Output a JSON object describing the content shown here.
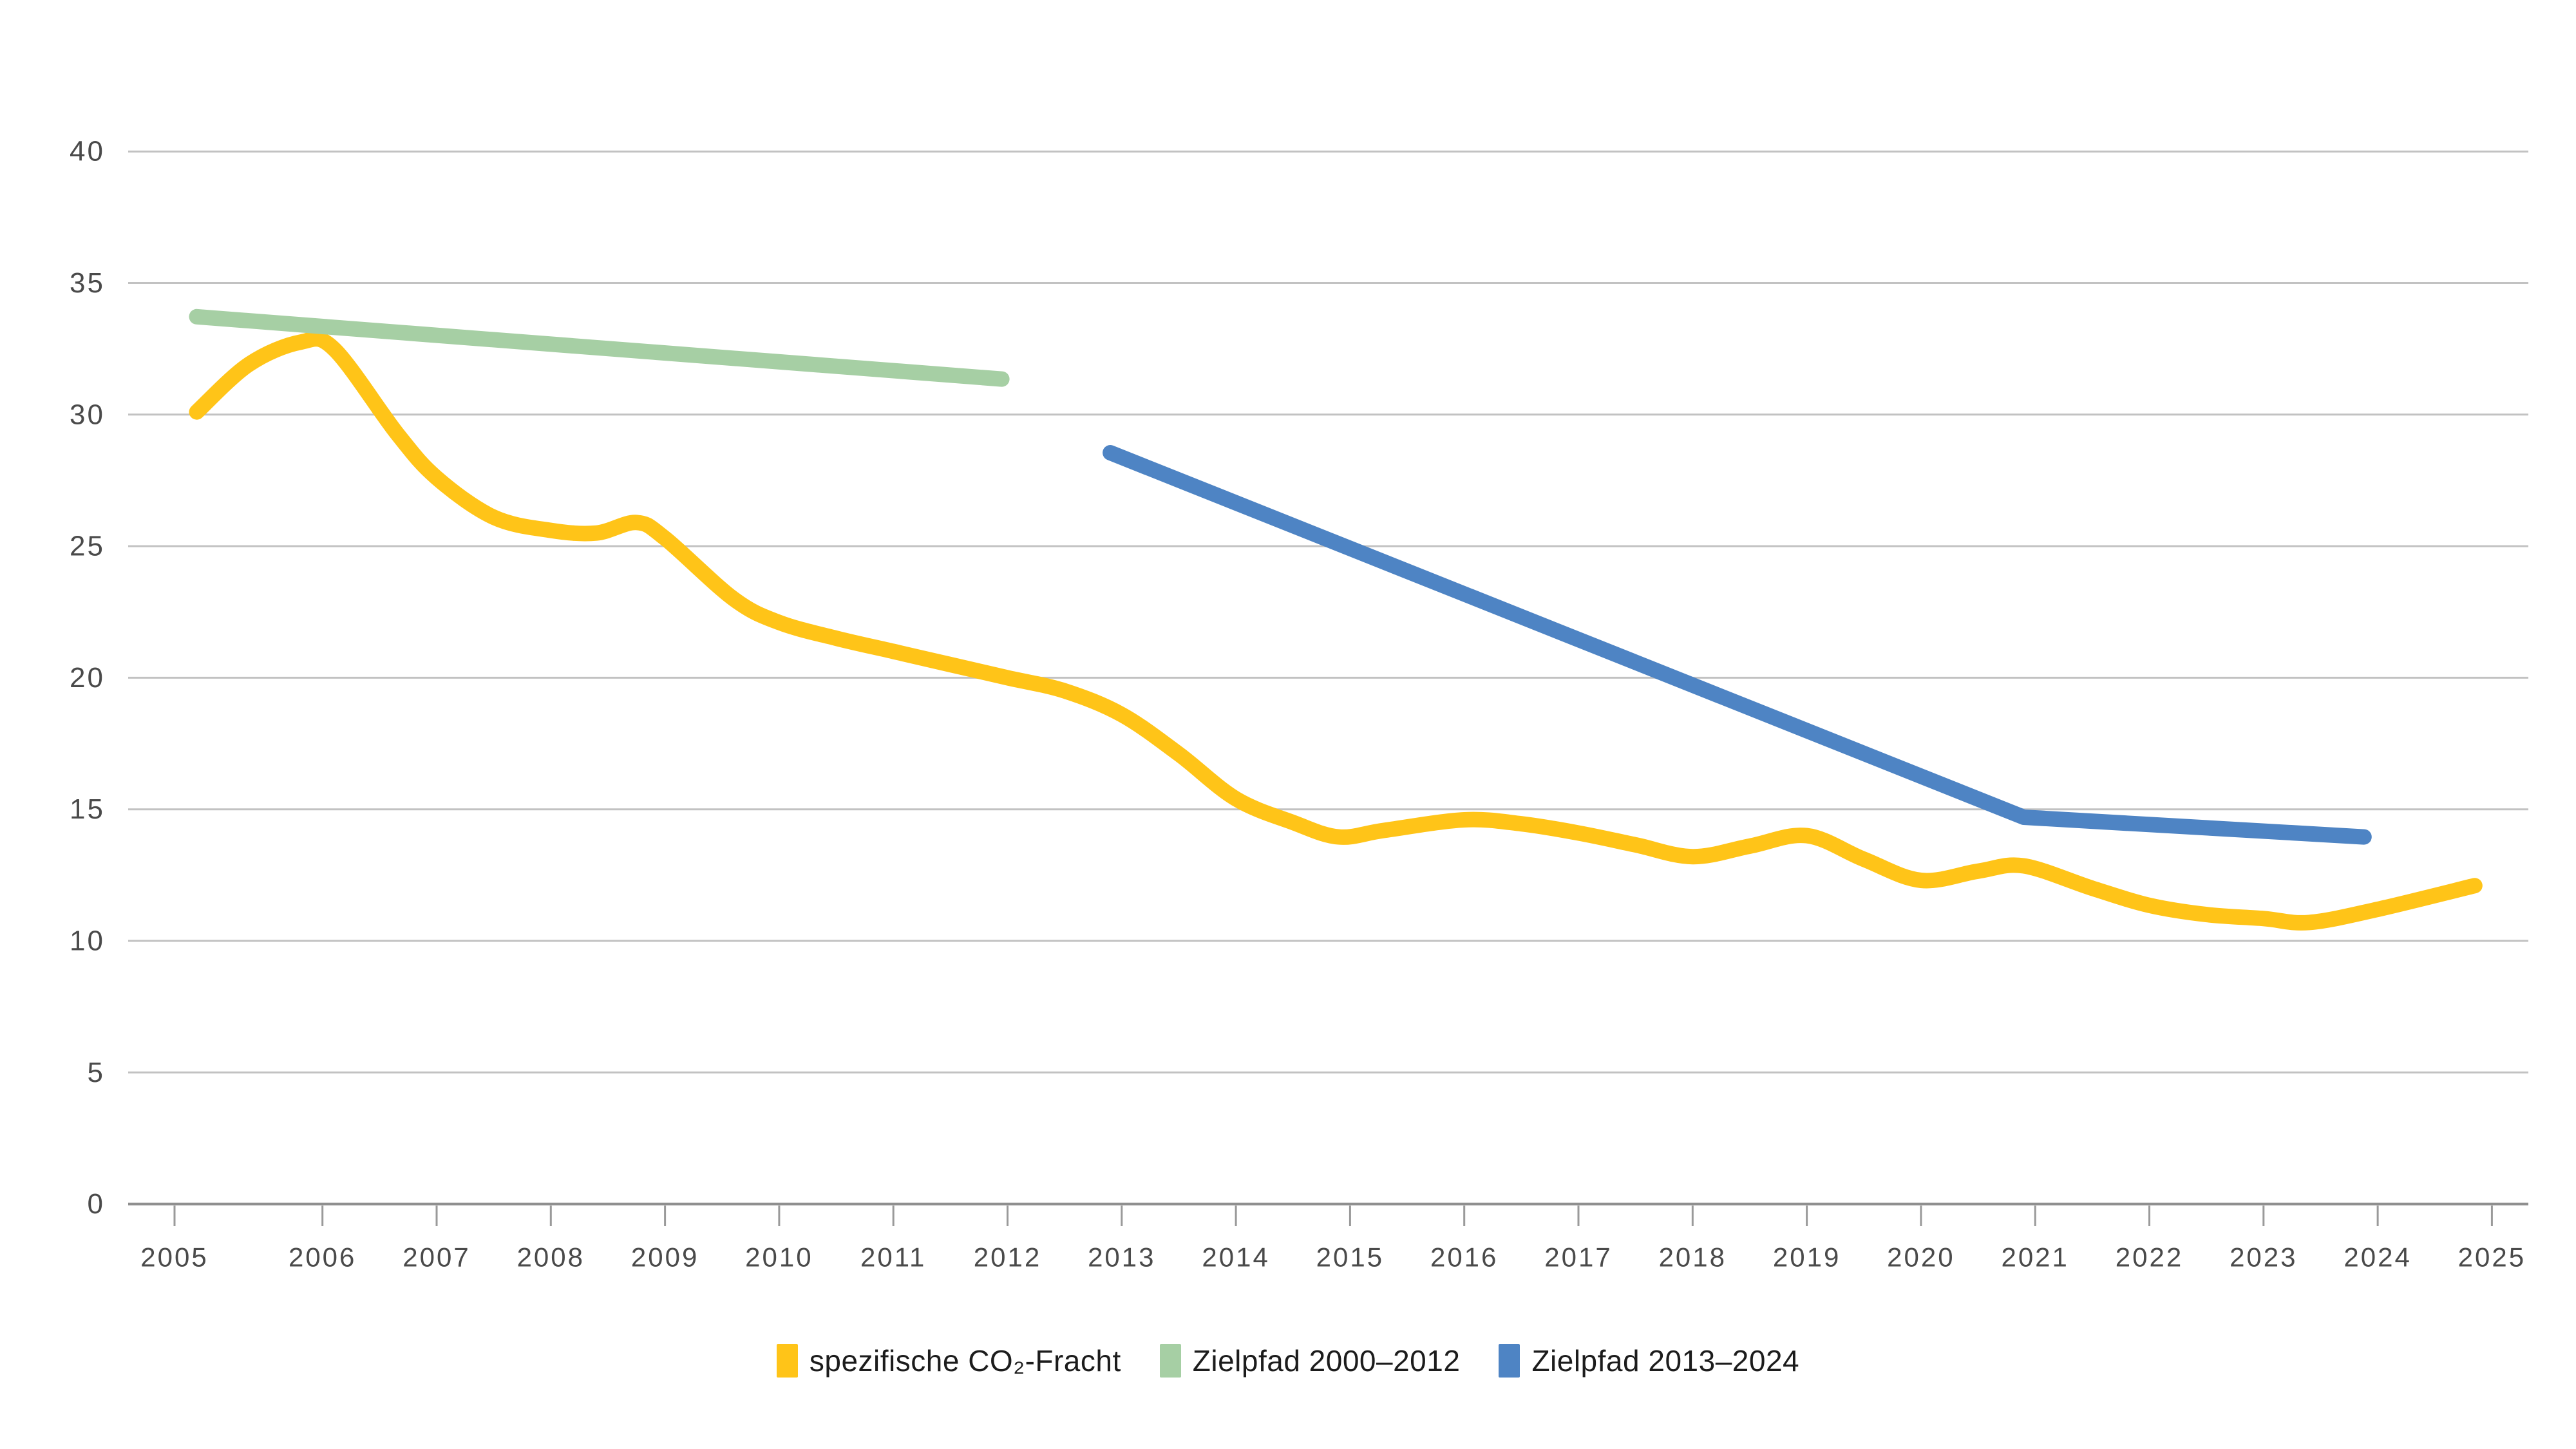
{
  "chart_data": {
    "type": "line",
    "title": "",
    "xlabel": "",
    "ylabel": "",
    "x_ticks": [
      2005,
      2006,
      2007,
      2008,
      2009,
      2010,
      2011,
      2012,
      2013,
      2014,
      2015,
      2016,
      2017,
      2018,
      2019,
      2020,
      2021,
      2022,
      2023,
      2024,
      2025
    ],
    "y_ticks": [
      0,
      5,
      10,
      15,
      20,
      25,
      30,
      35,
      40
    ],
    "ylim": [
      0,
      40
    ],
    "grid": "horizontal",
    "legend_position": "bottom-center",
    "series": [
      {
        "name": "spezifische CO₂-Fracht",
        "color": "#FFC418",
        "line_style": "smooth",
        "points": [
          [
            2005.15,
            30.1
          ],
          [
            2005.5,
            31.9
          ],
          [
            2005.85,
            32.75
          ],
          [
            2006.1,
            32.5
          ],
          [
            2006.65,
            29.3
          ],
          [
            2007.0,
            27.6
          ],
          [
            2007.5,
            26.1
          ],
          [
            2008.0,
            25.6
          ],
          [
            2008.4,
            25.5
          ],
          [
            2008.75,
            25.9
          ],
          [
            2009.0,
            25.3
          ],
          [
            2009.6,
            23.0
          ],
          [
            2010.0,
            22.1
          ],
          [
            2010.5,
            21.5
          ],
          [
            2011.0,
            21.0
          ],
          [
            2011.5,
            20.5
          ],
          [
            2012.0,
            20.0
          ],
          [
            2012.5,
            19.5
          ],
          [
            2013.0,
            18.6
          ],
          [
            2013.5,
            17.1
          ],
          [
            2014.0,
            15.4
          ],
          [
            2014.5,
            14.5
          ],
          [
            2014.9,
            13.95
          ],
          [
            2015.3,
            14.2
          ],
          [
            2016.0,
            14.6
          ],
          [
            2016.5,
            14.45
          ],
          [
            2017.0,
            14.1
          ],
          [
            2017.5,
            13.65
          ],
          [
            2018.0,
            13.2
          ],
          [
            2018.5,
            13.6
          ],
          [
            2019.0,
            14.0
          ],
          [
            2019.5,
            13.1
          ],
          [
            2020.0,
            12.3
          ],
          [
            2020.5,
            12.65
          ],
          [
            2020.9,
            12.85
          ],
          [
            2021.5,
            12.0
          ],
          [
            2022.0,
            11.35
          ],
          [
            2022.5,
            11.0
          ],
          [
            2023.0,
            10.85
          ],
          [
            2023.4,
            10.7
          ],
          [
            2024.0,
            11.2
          ],
          [
            2024.85,
            12.1
          ]
        ]
      },
      {
        "name": "Zielpfad 2000–2012",
        "color": "#A6CFA4",
        "line_style": "straight",
        "points": [
          [
            2005.15,
            33.72
          ],
          [
            2011.95,
            31.35
          ]
        ]
      },
      {
        "name": "Zielpfad 2013–2024",
        "color": "#4E84C4",
        "line_style": "straight",
        "points": [
          [
            2012.9,
            28.55
          ],
          [
            2020.9,
            14.7
          ],
          [
            2023.88,
            13.95
          ]
        ]
      }
    ],
    "theme": {
      "background": "#ffffff",
      "grid_color": "#c2c2c2",
      "baseline_color": "#8f8f8f",
      "tick_color": "#9a9a9a",
      "axis_label_color": "#4a4a4a",
      "legend_text_color": "#1c1c1c"
    }
  }
}
